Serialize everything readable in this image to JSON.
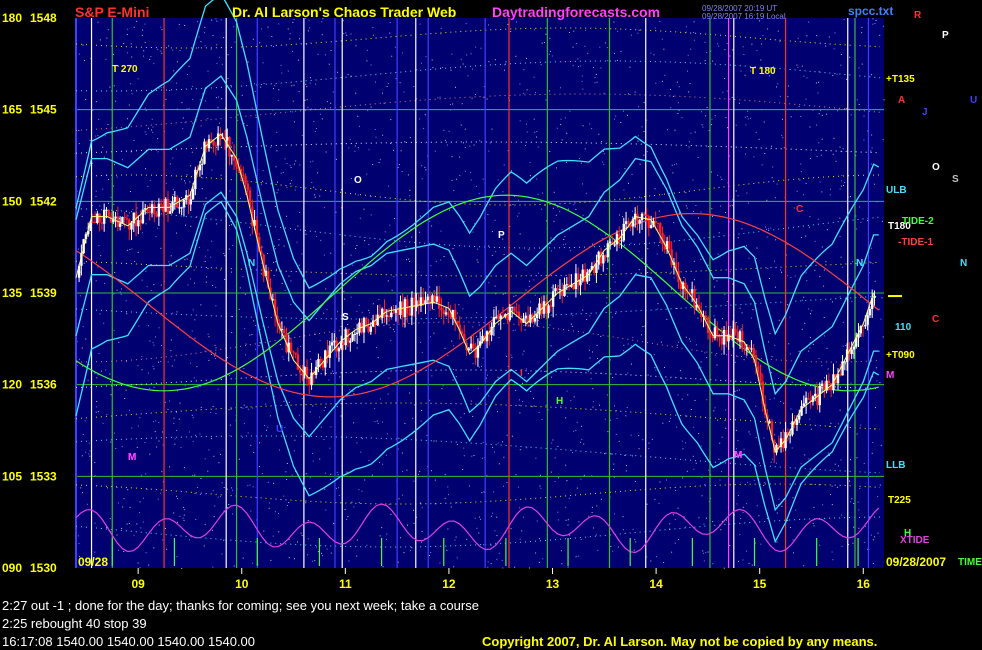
{
  "header": {
    "instrument": "S&P E-Mini",
    "title": "Dr. Al Larson's Chaos Trader Web",
    "site": "Daytradingforecasts.com",
    "file": "spcc.txt",
    "timestamp_lines": [
      "09/28/2007 20:19 UT",
      "09/28/2007 16:19 Local"
    ]
  },
  "colors": {
    "background": "#000000",
    "plot_background": "#000070",
    "header_instrument": "#ff3030",
    "header_title": "#ffff00",
    "header_site": "#ff40ff",
    "up_candle": "#ffffff",
    "down_candle": "#ff2020",
    "band_cyan": "#40e0ff",
    "tide1": "#ff4040",
    "tide2": "#40ff40",
    "xtide": "#e040e0",
    "moving_average": "#ffff80"
  },
  "notes": [
    "2:27 out -1 ; done for the day; thanks for coming; see you next week; take a course",
    "2:25 rebought 40 stop 39",
    "16:17:08  1540.00 1540.00 1540.00 1540.00"
  ],
  "copyright": "Copyright 2007, Dr. Al Larson. May not be copied by any means.",
  "chart_data": {
    "type": "candlestick",
    "title": "S&P E-Mini",
    "date_start_label": "09/28",
    "date_end_label": "09/28/2007",
    "x_ticks": [
      "09",
      "10",
      "11",
      "12",
      "13",
      "14",
      "15",
      "16"
    ],
    "xlim": [
      8.4,
      16.2
    ],
    "y_ticks": [
      {
        "angle": "180",
        "price": "1548"
      },
      {
        "angle": "165",
        "price": "1545"
      },
      {
        "angle": "150",
        "price": "1542"
      },
      {
        "angle": "135",
        "price": "1539"
      },
      {
        "angle": "120",
        "price": "1536"
      },
      {
        "angle": "105",
        "price": "1533"
      },
      {
        "angle": "090",
        "price": "1530"
      }
    ],
    "ylim": [
      1530,
      1548
    ],
    "grid": true,
    "price_path": [
      [
        8.4,
        1539.5
      ],
      [
        8.55,
        1541.5
      ],
      [
        8.7,
        1541.5
      ],
      [
        8.9,
        1541.2
      ],
      [
        9.1,
        1541.8
      ],
      [
        9.3,
        1541.8
      ],
      [
        9.5,
        1542.2
      ],
      [
        9.65,
        1543.8
      ],
      [
        9.8,
        1544.2
      ],
      [
        9.95,
        1543.4
      ],
      [
        10.05,
        1542.2
      ],
      [
        10.2,
        1540.0
      ],
      [
        10.35,
        1538.0
      ],
      [
        10.5,
        1536.8
      ],
      [
        10.65,
        1536.2
      ],
      [
        10.8,
        1536.8
      ],
      [
        10.95,
        1537.4
      ],
      [
        11.1,
        1537.8
      ],
      [
        11.25,
        1538.0
      ],
      [
        11.4,
        1538.4
      ],
      [
        11.55,
        1538.5
      ],
      [
        11.7,
        1538.6
      ],
      [
        11.85,
        1538.7
      ],
      [
        12.0,
        1538.5
      ],
      [
        12.1,
        1537.8
      ],
      [
        12.2,
        1537.0
      ],
      [
        12.3,
        1537.3
      ],
      [
        12.45,
        1538.0
      ],
      [
        12.6,
        1538.4
      ],
      [
        12.75,
        1538.0
      ],
      [
        12.9,
        1538.5
      ],
      [
        13.05,
        1539.0
      ],
      [
        13.2,
        1539.3
      ],
      [
        13.35,
        1539.6
      ],
      [
        13.5,
        1540.4
      ],
      [
        13.65,
        1540.8
      ],
      [
        13.8,
        1541.5
      ],
      [
        13.95,
        1541.4
      ],
      [
        14.1,
        1540.5
      ],
      [
        14.25,
        1539.3
      ],
      [
        14.4,
        1538.6
      ],
      [
        14.55,
        1537.6
      ],
      [
        14.7,
        1537.6
      ],
      [
        14.85,
        1537.4
      ],
      [
        14.95,
        1536.8
      ],
      [
        15.05,
        1535.2
      ],
      [
        15.15,
        1533.8
      ],
      [
        15.25,
        1534.2
      ],
      [
        15.4,
        1535.2
      ],
      [
        15.55,
        1535.6
      ],
      [
        15.7,
        1536.0
      ],
      [
        15.85,
        1537.0
      ],
      [
        16.0,
        1538.0
      ],
      [
        16.1,
        1539.0
      ]
    ],
    "band_labels": [
      "T 270",
      "T 180",
      "+T135",
      "ULB",
      "T180",
      "-TIDE-1",
      "TIDE-2",
      "110",
      "+T090",
      "LLB",
      "T225",
      "XTIDE",
      "TIME"
    ],
    "planet_labels": [
      "R",
      "P",
      "A",
      "J",
      "U",
      "O",
      "S",
      "N",
      "C",
      "M",
      "H",
      "M",
      "M"
    ],
    "chart_markers": [
      "N",
      "O",
      "P",
      "C",
      "H",
      "M",
      "M",
      "N",
      "S",
      "U",
      "I"
    ]
  }
}
